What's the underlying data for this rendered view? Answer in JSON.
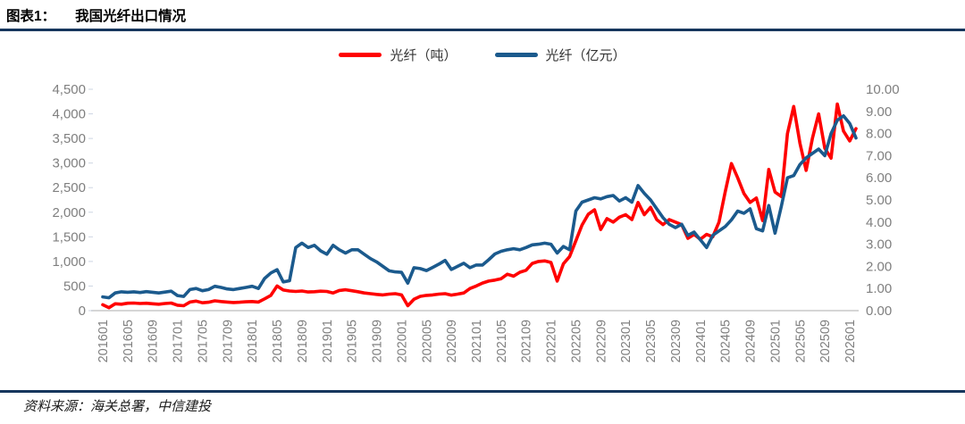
{
  "header": {
    "figure_label": "图表1：",
    "title": "我国光纤出口情况"
  },
  "source": "资料来源：海关总署，中信建投",
  "chart_data": {
    "type": "line",
    "title": "我国光纤出口情况",
    "grid": false,
    "legend_position": "top-center",
    "x": [
      "201601",
      "201602",
      "201603",
      "201604",
      "201605",
      "201606",
      "201607",
      "201608",
      "201609",
      "201610",
      "201611",
      "201612",
      "201701",
      "201702",
      "201703",
      "201704",
      "201705",
      "201706",
      "201707",
      "201708",
      "201709",
      "201710",
      "201711",
      "201712",
      "201801",
      "201802",
      "201803",
      "201804",
      "201805",
      "201806",
      "201807",
      "201808",
      "201809",
      "201810",
      "201811",
      "201812",
      "201901",
      "201902",
      "201903",
      "201904",
      "201905",
      "201906",
      "201907",
      "201908",
      "201909",
      "201910",
      "201911",
      "201912",
      "202001",
      "202002",
      "202003",
      "202004",
      "202005",
      "202006",
      "202007",
      "202008",
      "202009",
      "202010",
      "202011",
      "202012",
      "202101",
      "202102",
      "202103",
      "202104",
      "202105",
      "202106",
      "202107",
      "202108",
      "202109",
      "202110",
      "202111",
      "202112",
      "202201",
      "202202",
      "202203",
      "202204",
      "202205",
      "202206",
      "202207",
      "202208",
      "202209",
      "202210",
      "202211",
      "202212",
      "202301",
      "202302",
      "202303",
      "202304",
      "202305",
      "202306",
      "202307",
      "202308",
      "202309",
      "202310",
      "202311",
      "202312",
      "202401",
      "202402",
      "202403",
      "202404",
      "202405",
      "202406",
      "202407",
      "202408",
      "202409",
      "202410",
      "202411",
      "202412",
      "202501",
      "202502",
      "202503",
      "202504",
      "202505",
      "202506",
      "202507",
      "202508",
      "202509",
      "202510",
      "202511",
      "202512",
      "202601",
      "202602"
    ],
    "x_tick_labels": [
      "201601",
      "201605",
      "201609",
      "201701",
      "201705",
      "201709",
      "201801",
      "201805",
      "201809",
      "201901",
      "201905",
      "201909",
      "202001",
      "202005",
      "202009",
      "202101",
      "202105",
      "202109",
      "202201",
      "202205",
      "202209",
      "202301",
      "202305",
      "202309",
      "202401",
      "202405",
      "202409",
      "202501",
      "202505",
      "202509",
      "202601"
    ],
    "y_left": {
      "min": 0,
      "max": 4500,
      "tick_labels": [
        "0",
        "500",
        "1,000",
        "1,500",
        "2,000",
        "2,500",
        "3,000",
        "3,500",
        "4,000",
        "4,500"
      ]
    },
    "y_right": {
      "min": 0,
      "max": 10,
      "tick_labels": [
        "0.00",
        "1.00",
        "2.00",
        "3.00",
        "4.00",
        "5.00",
        "6.00",
        "7.00",
        "8.00",
        "9.00",
        "10.00"
      ]
    },
    "series": [
      {
        "name": "光纤（吨）",
        "axis": "left",
        "color": "#FF0000",
        "values": [
          120,
          60,
          140,
          130,
          150,
          155,
          145,
          150,
          140,
          130,
          145,
          155,
          110,
          100,
          175,
          195,
          160,
          170,
          200,
          185,
          175,
          165,
          170,
          180,
          185,
          175,
          240,
          310,
          500,
          420,
          400,
          390,
          400,
          380,
          385,
          395,
          390,
          360,
          410,
          425,
          405,
          385,
          360,
          345,
          330,
          320,
          335,
          345,
          320,
          100,
          230,
          290,
          310,
          320,
          335,
          345,
          315,
          335,
          360,
          450,
          500,
          560,
          600,
          620,
          650,
          740,
          700,
          780,
          820,
          960,
          1000,
          1010,
          980,
          600,
          950,
          1100,
          1420,
          1740,
          1960,
          2050,
          1650,
          1870,
          1800,
          1900,
          1950,
          1850,
          2200,
          1950,
          2100,
          1850,
          1750,
          1850,
          1800,
          1750,
          1470,
          1550,
          1450,
          1550,
          1500,
          1800,
          2420,
          2990,
          2700,
          2380,
          2200,
          2290,
          1830,
          2870,
          2410,
          2320,
          3600,
          4150,
          3400,
          2850,
          3500,
          4000,
          3300,
          3100,
          4200,
          3650,
          3450,
          3700
        ]
      },
      {
        "name": "光纤（亿元）",
        "axis": "right",
        "color": "#1B5A8D",
        "values": [
          0.62,
          0.58,
          0.8,
          0.85,
          0.83,
          0.85,
          0.82,
          0.86,
          0.83,
          0.8,
          0.84,
          0.88,
          0.68,
          0.64,
          0.95,
          1.0,
          0.9,
          0.95,
          1.1,
          1.05,
          0.98,
          0.95,
          1.0,
          1.05,
          1.1,
          1.0,
          1.45,
          1.7,
          1.85,
          1.3,
          1.35,
          2.85,
          3.05,
          2.85,
          2.95,
          2.7,
          2.55,
          2.95,
          2.75,
          2.6,
          2.75,
          2.75,
          2.55,
          2.35,
          2.2,
          2.0,
          1.8,
          1.75,
          1.73,
          1.24,
          1.94,
          1.9,
          1.81,
          1.95,
          2.1,
          2.27,
          1.86,
          2.0,
          2.14,
          1.94,
          2.06,
          2.06,
          2.3,
          2.56,
          2.68,
          2.75,
          2.8,
          2.75,
          2.85,
          2.97,
          3.0,
          3.05,
          3.0,
          2.6,
          2.9,
          2.75,
          4.5,
          4.9,
          5.0,
          5.1,
          5.05,
          5.15,
          5.2,
          4.95,
          5.1,
          4.9,
          5.65,
          5.3,
          5.0,
          4.6,
          4.2,
          3.9,
          3.75,
          3.9,
          3.4,
          3.55,
          3.2,
          2.85,
          3.4,
          3.6,
          3.8,
          4.1,
          4.5,
          4.4,
          4.6,
          3.7,
          3.6,
          4.75,
          3.5,
          4.7,
          6.0,
          6.1,
          6.6,
          6.9,
          7.1,
          7.3,
          7.0,
          8.0,
          8.6,
          8.8,
          8.45,
          7.8
        ]
      }
    ]
  }
}
